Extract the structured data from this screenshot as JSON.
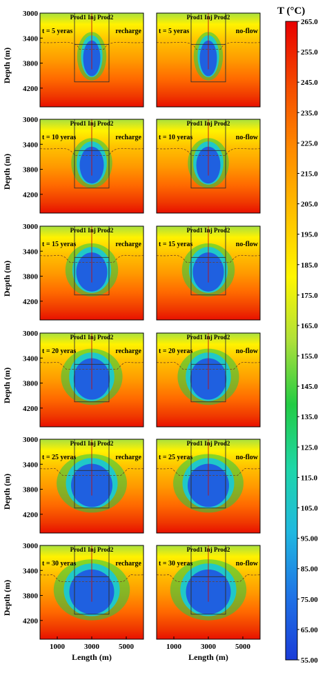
{
  "chart_data": [
    {
      "type": "heatmap",
      "time_label": "t = 5 yeras",
      "boundary": "recharge",
      "well_labels": "Prod1 Inj Prod2",
      "cold_top_m": 3380,
      "cold_bottom_m": 4000,
      "cold_halfwidth_m": 500,
      "ylabel": "Depth (m)",
      "yticks": [
        3000,
        3400,
        3800,
        4200
      ]
    },
    {
      "type": "heatmap",
      "time_label": "t = 5 yeras",
      "boundary": "no-flow",
      "well_labels": "Prod1 Inj Prod2",
      "cold_top_m": 3380,
      "cold_bottom_m": 4000,
      "cold_halfwidth_m": 500
    },
    {
      "type": "heatmap",
      "time_label": "t = 10 yeras",
      "boundary": "recharge",
      "well_labels": "Prod1 Inj Prod2",
      "cold_top_m": 3380,
      "cold_bottom_m": 4020,
      "cold_halfwidth_m": 700,
      "ylabel": "Depth (m)",
      "yticks": [
        3000,
        3400,
        3800,
        4200
      ]
    },
    {
      "type": "heatmap",
      "time_label": "t = 10 yeras",
      "boundary": "no-flow",
      "well_labels": "Prod1 Inj Prod2",
      "cold_top_m": 3380,
      "cold_bottom_m": 4020,
      "cold_halfwidth_m": 700
    },
    {
      "type": "heatmap",
      "time_label": "t = 15 yeras",
      "boundary": "recharge",
      "well_labels": "Prod1 Inj Prod2",
      "cold_top_m": 3360,
      "cold_bottom_m": 4040,
      "cold_halfwidth_m": 900,
      "ylabel": "Depth (m)",
      "yticks": [
        3000,
        3400,
        3800,
        4200
      ]
    },
    {
      "type": "heatmap",
      "time_label": "t = 15 yeras",
      "boundary": "no-flow",
      "well_labels": "Prod1 Inj Prod2",
      "cold_top_m": 3360,
      "cold_bottom_m": 4040,
      "cold_halfwidth_m": 900
    },
    {
      "type": "heatmap",
      "time_label": "t = 20 yeras",
      "boundary": "recharge",
      "well_labels": "Prod1 Inj Prod2",
      "cold_top_m": 3340,
      "cold_bottom_m": 4060,
      "cold_halfwidth_m": 1050,
      "ylabel": "Depth (m)",
      "yticks": [
        3000,
        3400,
        3800,
        4200
      ]
    },
    {
      "type": "heatmap",
      "time_label": "t = 20 yeras",
      "boundary": "no-flow",
      "well_labels": "Prod1 Inj Prod2",
      "cold_top_m": 3340,
      "cold_bottom_m": 4060,
      "cold_halfwidth_m": 1050
    },
    {
      "type": "heatmap",
      "time_label": "t = 25 yeras",
      "boundary": "recharge",
      "well_labels": "Prod1 Inj Prod2",
      "cold_top_m": 3330,
      "cold_bottom_m": 4080,
      "cold_halfwidth_m": 1200,
      "ylabel": "Depth (m)",
      "yticks": [
        3000,
        3400,
        3800,
        4200
      ]
    },
    {
      "type": "heatmap",
      "time_label": "t = 25 yeras",
      "boundary": "no-flow",
      "well_labels": "Prod1 Inj Prod2",
      "cold_top_m": 3330,
      "cold_bottom_m": 4080,
      "cold_halfwidth_m": 1200
    },
    {
      "type": "heatmap",
      "time_label": "t = 30 yeras",
      "boundary": "recharge",
      "well_labels": "Prod1 Inj Prod2",
      "cold_top_m": 3320,
      "cold_bottom_m": 4100,
      "cold_halfwidth_m": 1300,
      "ylabel": "Depth (m)",
      "yticks": [
        3000,
        3400,
        3800,
        4200
      ],
      "xlabel": "Length (m)",
      "xticks": [
        1000,
        3000,
        5000
      ]
    },
    {
      "type": "heatmap",
      "time_label": "t = 30 yeras",
      "boundary": "no-flow",
      "well_labels": "Prod1 Inj Prod2",
      "cold_top_m": 3320,
      "cold_bottom_m": 4100,
      "cold_halfwidth_m": 1300,
      "xlabel": "Length (m)",
      "xticks": [
        1000,
        3000,
        5000
      ]
    }
  ],
  "axes": {
    "xrange": [
      0,
      6000
    ],
    "yrange": [
      3000,
      4500
    ],
    "xticks": [
      1000,
      3000,
      5000
    ],
    "yticks": [
      3000,
      3400,
      3800,
      4200
    ],
    "xlabel": "Length (m)",
    "ylabel": "Depth (m)",
    "well_x": [
      2000,
      3000,
      4000
    ],
    "well_top_m": 3000,
    "well_bottom_m": 3900,
    "box_x": [
      2000,
      4000
    ],
    "box_y": [
      3500,
      4100
    ]
  },
  "colorbar": {
    "title": "T (°C)",
    "ticks": [
      "265.0",
      "255.0",
      "245.0",
      "235.0",
      "225.0",
      "215.0",
      "205.0",
      "195.0",
      "185.0",
      "175.0",
      "165.0",
      "155.0",
      "145.0",
      "135.0",
      "125.0",
      "115.0",
      "105.0",
      "95.00",
      "85.00",
      "75.00",
      "65.00",
      "55.00"
    ],
    "min": 55,
    "max": 265,
    "colors": [
      "#1a3cd8",
      "#1f73e6",
      "#20b8e0",
      "#1fd6a8",
      "#22cc44",
      "#aee03a",
      "#fff600",
      "#ffc000",
      "#ff8a00",
      "#f44a00",
      "#e80000"
    ]
  }
}
